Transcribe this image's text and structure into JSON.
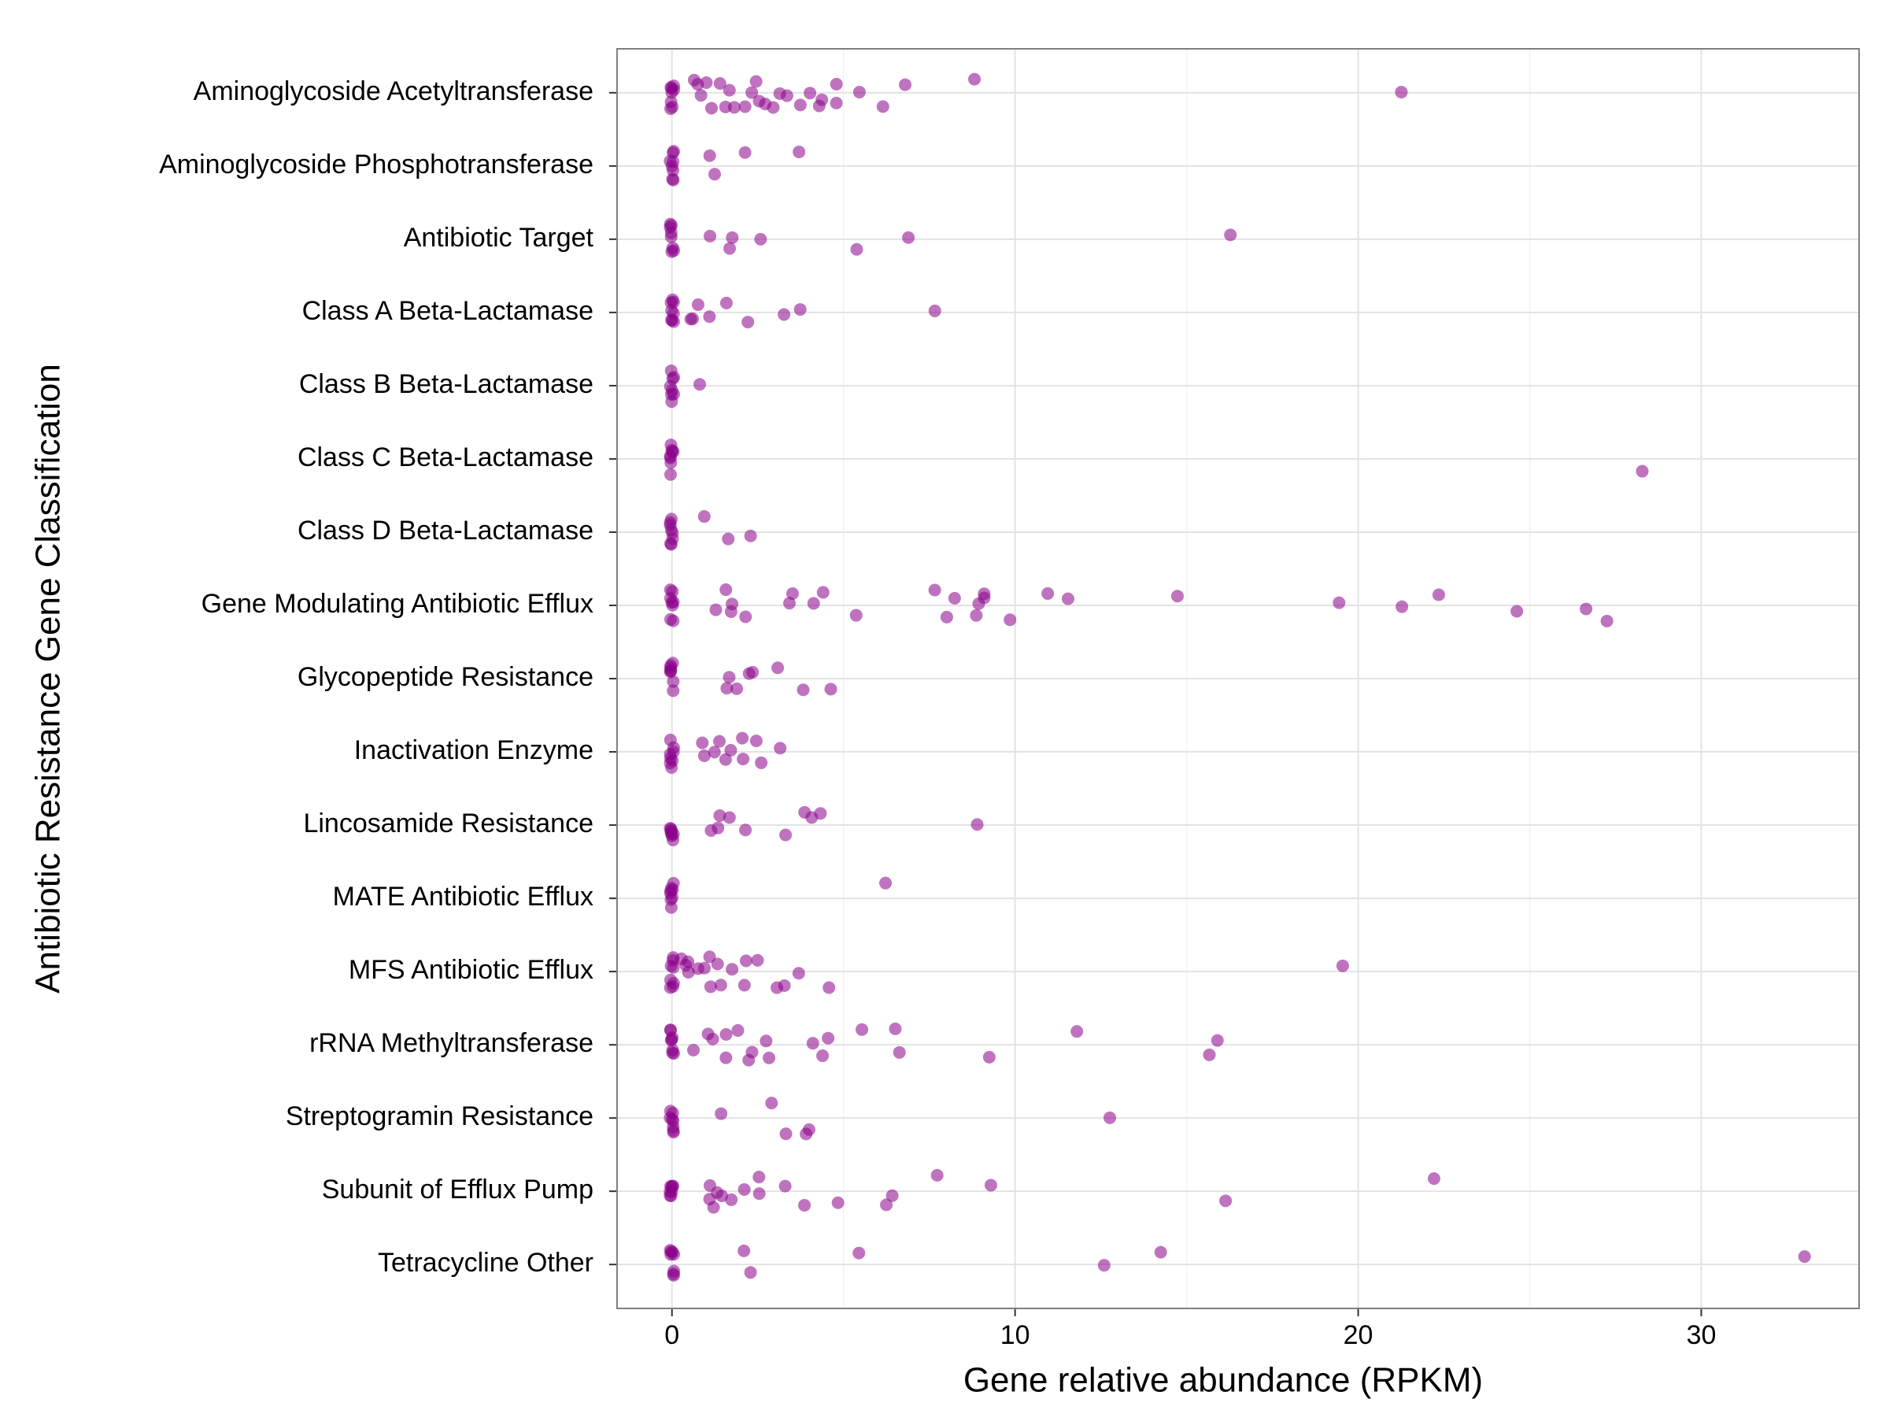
{
  "chart_data": {
    "type": "strip",
    "x_label": "Gene relative abundance (RPKM)",
    "y_label": "Antibiotic Resistance Gene Classification",
    "color": "#8b008b",
    "opacity": 0.55,
    "grid": true,
    "xlim": [
      -1.6,
      34.6
    ],
    "xticks": [
      0,
      10,
      20,
      30
    ],
    "x_minor_ticks": [
      5,
      15,
      25
    ],
    "categories": [
      "Aminoglycoside Acetyltransferase",
      "Aminoglycoside Phosphotransferase",
      "Antibiotic Target",
      "Class A Beta-Lactamase",
      "Class B Beta-Lactamase",
      "Class C Beta-Lactamase",
      "Class D Beta-Lactamase",
      "Gene Modulating Antibiotic Efflux",
      "Glycopeptide Resistance",
      "Inactivation Enzyme",
      "Lincosamide Resistance",
      "MATE Antibiotic Efflux",
      "MFS Antibiotic Efflux",
      "rRNA Methyltransferase",
      "Streptogramin Resistance",
      "Subunit of Efflux Pump",
      "Tetracycline Other"
    ],
    "values": [
      [
        0,
        0,
        0,
        0,
        0,
        0,
        0,
        0,
        0.7,
        0.8,
        0.7,
        1.1,
        1.0,
        1.4,
        1.6,
        1.7,
        1.8,
        2.1,
        2.3,
        2.4,
        2.5,
        2.7,
        2.9,
        3.1,
        3.4,
        3.7,
        4.0,
        4.3,
        4.4,
        4.8,
        4.8,
        5.5,
        6.2,
        6.8,
        8.8,
        21.3
      ],
      [
        0,
        0,
        0,
        0,
        0,
        0,
        0,
        0,
        1.1,
        1.2,
        2.1,
        3.7
      ],
      [
        0,
        0,
        0,
        0,
        0,
        0,
        0,
        0,
        1.1,
        1.7,
        1.8,
        2.6,
        5.4,
        6.9,
        16.3
      ],
      [
        0,
        0,
        0,
        0,
        0,
        0,
        0,
        0,
        0.5,
        0.6,
        0.8,
        1.1,
        1.6,
        2.2,
        3.3,
        3.7,
        7.7
      ],
      [
        0,
        0,
        0,
        0,
        0,
        0,
        0,
        0,
        0.8
      ],
      [
        0,
        0,
        0,
        0,
        0,
        0,
        0,
        0,
        28.3
      ],
      [
        0,
        0,
        0,
        0,
        0,
        0,
        0,
        0,
        0.9,
        1.6,
        2.3
      ],
      [
        0,
        0,
        0,
        0,
        0,
        0,
        0,
        0,
        1.3,
        1.6,
        1.7,
        1.7,
        2.1,
        3.4,
        3.5,
        4.1,
        4.4,
        5.4,
        7.7,
        8.0,
        8.2,
        8.9,
        8.9,
        9.1,
        9.1,
        9.9,
        10.9,
        11.6,
        14.7,
        19.5,
        21.3,
        22.3,
        24.6,
        26.6,
        27.2
      ],
      [
        0,
        0,
        0,
        0,
        0,
        0,
        0,
        0,
        1.6,
        1.7,
        1.9,
        2.3,
        2.4,
        3.1,
        3.8,
        4.6
      ],
      [
        0,
        0,
        0,
        0,
        0,
        0,
        0,
        0,
        0.9,
        1.0,
        1.2,
        1.4,
        1.6,
        1.7,
        2.1,
        2.1,
        2.5,
        2.6,
        3.2
      ],
      [
        0,
        0,
        0,
        0,
        0,
        0,
        0,
        0,
        1.1,
        1.3,
        1.4,
        1.7,
        2.1,
        3.3,
        3.9,
        4.1,
        4.3,
        8.9
      ],
      [
        0,
        0,
        0,
        0,
        0,
        0,
        0,
        0,
        6.2
      ],
      [
        0,
        0,
        0,
        0,
        0,
        0,
        0,
        0,
        0.3,
        0.4,
        0.5,
        0.5,
        0.8,
        0.9,
        1.1,
        1.1,
        1.3,
        1.4,
        1.8,
        2.1,
        2.2,
        2.5,
        3.1,
        3.3,
        3.7,
        4.6,
        19.6
      ],
      [
        0,
        0,
        0,
        0,
        0,
        0,
        0,
        0,
        0.6,
        1.0,
        1.2,
        1.6,
        1.6,
        1.9,
        2.2,
        2.3,
        2.7,
        2.8,
        4.1,
        4.4,
        4.6,
        5.5,
        6.5,
        6.6,
        9.2,
        11.8,
        15.7,
        15.9
      ],
      [
        0,
        0,
        0,
        0,
        0,
        0,
        0,
        0,
        1.4,
        2.9,
        3.3,
        3.9,
        4.0,
        12.8
      ],
      [
        0,
        0,
        0,
        0,
        0,
        0,
        0,
        0,
        1.1,
        1.1,
        1.2,
        1.3,
        1.5,
        1.7,
        2.1,
        2.5,
        2.5,
        3.3,
        3.9,
        4.8,
        6.2,
        6.4,
        7.7,
        9.3,
        16.1,
        22.2
      ],
      [
        0,
        0,
        0,
        0,
        0,
        0,
        0,
        0,
        2.1,
        2.3,
        5.5,
        12.6,
        14.3,
        33.0
      ]
    ]
  }
}
